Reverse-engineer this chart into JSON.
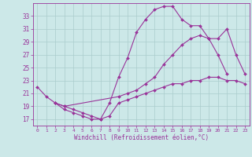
{
  "xlabel": "Windchill (Refroidissement éolien,°C)",
  "bg_color": "#cce8e8",
  "line_color": "#993399",
  "grid_color": "#aacccc",
  "xmin": -0.5,
  "xmax": 23.5,
  "ymin": 16.0,
  "ymax": 35.0,
  "yticks": [
    17,
    19,
    21,
    23,
    25,
    27,
    29,
    31,
    33
  ],
  "xticks": [
    0,
    1,
    2,
    3,
    4,
    5,
    6,
    7,
    8,
    9,
    10,
    11,
    12,
    13,
    14,
    15,
    16,
    17,
    18,
    19,
    20,
    21,
    22,
    23
  ],
  "series": [
    {
      "x": [
        0,
        1,
        2,
        3,
        4,
        5,
        6,
        7,
        8,
        9,
        10,
        11,
        12,
        13,
        14,
        15,
        16,
        17,
        18,
        19,
        20,
        21
      ],
      "y": [
        22.0,
        20.5,
        19.5,
        18.5,
        18.0,
        17.5,
        17.0,
        17.0,
        19.5,
        23.5,
        26.5,
        30.5,
        32.5,
        34.0,
        34.5,
        34.5,
        32.5,
        31.5,
        31.5,
        29.5,
        27.0,
        24.0
      ]
    },
    {
      "x": [
        2,
        3,
        9,
        10,
        11,
        12,
        13,
        14,
        15,
        16,
        17,
        18,
        19,
        20,
        21,
        22,
        23
      ],
      "y": [
        19.5,
        19.0,
        20.5,
        21.0,
        21.5,
        22.5,
        23.5,
        25.5,
        27.0,
        28.5,
        29.5,
        30.0,
        29.5,
        29.5,
        31.0,
        27.0,
        24.0
      ]
    },
    {
      "x": [
        2,
        3,
        4,
        5,
        6,
        7,
        8,
        9,
        10,
        11,
        12,
        13,
        14,
        15,
        16,
        17,
        18,
        19,
        20,
        21,
        22,
        23
      ],
      "y": [
        19.5,
        19.0,
        18.5,
        18.0,
        17.5,
        17.0,
        17.5,
        19.5,
        20.0,
        20.5,
        21.0,
        21.5,
        22.0,
        22.5,
        22.5,
        23.0,
        23.0,
        23.5,
        23.5,
        23.0,
        23.0,
        22.5
      ]
    }
  ]
}
